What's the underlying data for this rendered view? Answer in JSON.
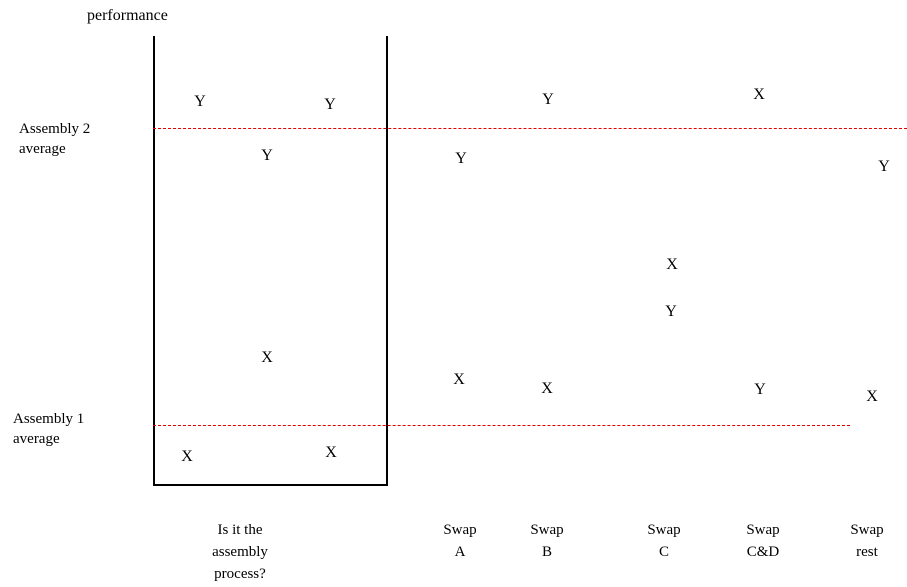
{
  "y_axis_title": "performance",
  "reference_lines": [
    {
      "label_line1": "Assembly 2",
      "label_line2": "average"
    },
    {
      "label_line1": "Assembly 1",
      "label_line2": "average"
    }
  ],
  "x_categories": [
    "Is it the\nassembly\nprocess?",
    "Swap\nA",
    "Swap\nB",
    "Swap\nC",
    "Swap\nC&D",
    "Swap\nrest"
  ],
  "points": [
    {
      "label": "Y"
    },
    {
      "label": "Y"
    },
    {
      "label": "Y"
    },
    {
      "label": "X"
    },
    {
      "label": "X"
    },
    {
      "label": "X"
    },
    {
      "label": "Y"
    },
    {
      "label": "X"
    },
    {
      "label": "Y"
    },
    {
      "label": "X"
    },
    {
      "label": "X"
    },
    {
      "label": "Y"
    },
    {
      "label": "X"
    },
    {
      "label": "Y"
    },
    {
      "label": "Y"
    },
    {
      "label": "X"
    }
  ],
  "colors": {
    "axis": "#000000",
    "reference_line": "#e00000"
  }
}
